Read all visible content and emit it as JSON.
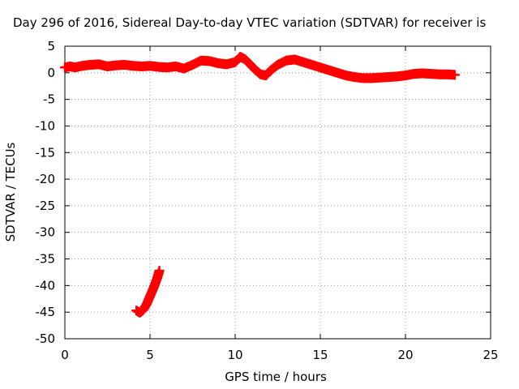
{
  "chart_data": {
    "type": "scatter",
    "title": "Day 296 of 2016, Sidereal Day-to-day VTEC variation (SDTVAR) for receiver is",
    "xlabel": "GPS time / hours",
    "ylabel": "SDTVAR / TECUs",
    "xlim": [
      0,
      25
    ],
    "ylim": [
      -50,
      5
    ],
    "xticks": [
      0,
      5,
      10,
      15,
      20,
      25
    ],
    "yticks": [
      5,
      0,
      -5,
      -10,
      -15,
      -20,
      -25,
      -30,
      -35,
      -40,
      -45,
      -50
    ],
    "grid": true,
    "series_color": "#ff0000",
    "series": [
      {
        "x": [
          0.0,
          0.3,
          0.6,
          1.0,
          1.5,
          2.0,
          2.5,
          3.0,
          3.5,
          4.0,
          4.5,
          5.0,
          5.5,
          6.0,
          6.5,
          7.0,
          7.5,
          8.0,
          8.5,
          9.0,
          9.5,
          10.0,
          10.3,
          10.6,
          10.9,
          11.2,
          11.5,
          11.8,
          12.1,
          12.5,
          13.0,
          13.5,
          14.0,
          14.5,
          15.0,
          15.5,
          16.0,
          16.5,
          17.0,
          17.5,
          18.0,
          18.5,
          19.0,
          19.5,
          20.0,
          20.5,
          21.0,
          21.5,
          22.0,
          22.5,
          22.9
        ],
        "y": [
          1.0,
          1.2,
          1.0,
          1.3,
          1.5,
          1.6,
          1.2,
          1.4,
          1.5,
          1.3,
          1.2,
          1.3,
          1.1,
          1.0,
          1.2,
          0.8,
          1.5,
          2.3,
          2.2,
          1.8,
          1.6,
          2.0,
          3.0,
          2.5,
          1.5,
          0.5,
          -0.3,
          -0.5,
          0.5,
          1.5,
          2.3,
          2.5,
          2.0,
          1.5,
          1.0,
          0.5,
          0.0,
          -0.5,
          -0.8,
          -1.0,
          -1.0,
          -0.9,
          -0.8,
          -0.7,
          -0.5,
          -0.2,
          -0.1,
          -0.2,
          -0.3,
          -0.3,
          -0.4
        ]
      },
      {
        "x": [
          4.2,
          4.4,
          4.6,
          4.8,
          5.0,
          5.2,
          5.4,
          5.55
        ],
        "y": [
          -44.7,
          -45.1,
          -44.6,
          -43.5,
          -42.0,
          -40.5,
          -38.8,
          -37.2
        ]
      }
    ]
  }
}
